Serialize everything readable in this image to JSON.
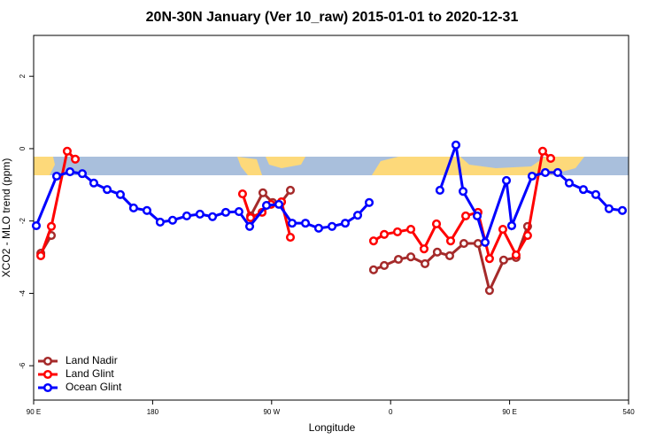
{
  "chart_data": {
    "type": "line",
    "title": "20N-30N January (Ver 10_raw)   2015-01-01 to 2020-12-31",
    "x_label": "Longitude",
    "y_label": "XCO2 - MLO trend (ppm)",
    "xlim": [
      90,
      540
    ],
    "ylim": [
      -6.95,
      3.13
    ],
    "xticks": [
      {
        "value": 90,
        "label": "90 E"
      },
      180,
      {
        "value": 270,
        "label": "90 W"
      },
      {
        "value": 360,
        "label": "0"
      },
      {
        "value": 450,
        "label": "90 E"
      },
      540
    ],
    "yticks": [
      2,
      0,
      -2,
      -4,
      -6
    ],
    "legend": "bottom-left",
    "series": [
      {
        "name": "Land Nadir",
        "color": "#a52a2a",
        "x": [
          95.4,
          103.4,
          null,
          254.1,
          263.4,
          270.8,
          277.5,
          284.2,
          null,
          347.1,
          355.2,
          365.9,
          375.3,
          386.0,
          395.3,
          404.7,
          415.4,
          426.1,
          434.8,
          445.5,
          454.9,
          463.6
        ],
        "values": [
          -2.89,
          -2.4,
          null,
          -1.86,
          -1.22,
          -1.49,
          -1.47,
          -1.15,
          null,
          -3.35,
          -3.23,
          -3.06,
          -2.99,
          -3.18,
          -2.86,
          -2.96,
          -2.62,
          -2.62,
          -3.92,
          -3.08,
          -3.01,
          -2.15
        ]
      },
      {
        "name": "Land Glint",
        "color": "#ff0000",
        "x": [
          95.4,
          103.4,
          115.4,
          121.5,
          null,
          248.0,
          254.1,
          262.8,
          269.5,
          277.5,
          284.2,
          null,
          347.1,
          355.2,
          365.2,
          375.3,
          385.3,
          394.7,
          405.4,
          416.8,
          426.1,
          434.8,
          444.9,
          454.9,
          463.6,
          475.0,
          481.1
        ],
        "values": [
          -2.96,
          -2.15,
          -0.07,
          -0.29,
          null,
          -1.25,
          -1.91,
          -1.76,
          -1.54,
          -1.47,
          -2.45,
          null,
          -2.55,
          -2.37,
          -2.3,
          -2.23,
          -2.77,
          -2.08,
          -2.55,
          -1.86,
          -1.76,
          -3.04,
          -2.23,
          -2.94,
          -2.4,
          -0.07,
          -0.27
        ]
      },
      {
        "name": "Ocean Glint",
        "color": "#0000ff",
        "x": [
          92.0,
          107.4,
          117.5,
          126.8,
          135.5,
          145.6,
          155.6,
          165.6,
          175.7,
          185.7,
          195.1,
          205.8,
          215.8,
          225.3,
          235.3,
          245.3,
          253.4,
          266.1,
          275.5,
          285.5,
          295.6,
          305.6,
          315.7,
          325.7,
          335.1,
          343.8,
          null,
          397.3,
          409.4,
          414.8,
          425.5,
          431.5,
          447.6,
          451.6,
          467.0,
          477.0,
          486.4,
          495.1,
          505.8,
          515.2,
          525.2,
          535.3
        ],
        "values": [
          -2.13,
          -0.76,
          -0.64,
          -0.69,
          -0.95,
          -1.13,
          -1.27,
          -1.64,
          -1.71,
          -2.03,
          -1.98,
          -1.86,
          -1.81,
          -1.88,
          -1.76,
          -1.74,
          -2.15,
          -1.57,
          -1.54,
          -2.06,
          -2.06,
          -2.2,
          -2.15,
          -2.06,
          -1.84,
          -1.49,
          null,
          -1.15,
          0.1,
          -1.18,
          -1.86,
          -2.59,
          -0.88,
          -2.13,
          -0.76,
          -0.66,
          -0.66,
          -0.95,
          -1.13,
          -1.27,
          -1.66,
          -1.71
        ]
      }
    ]
  }
}
